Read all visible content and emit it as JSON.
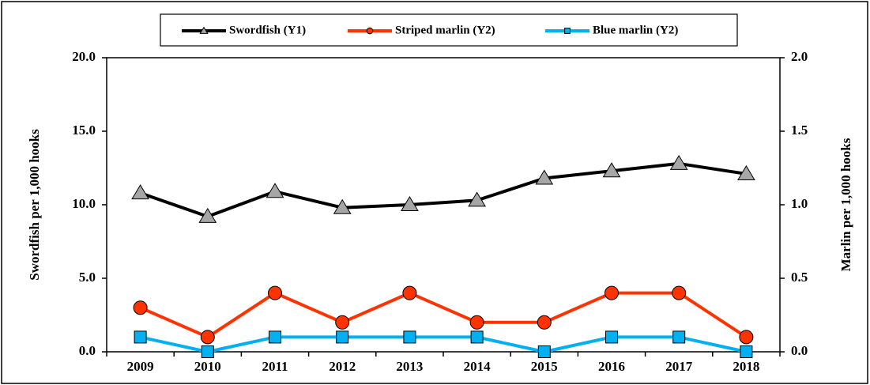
{
  "chart_data": {
    "type": "line",
    "categories": [
      "2009",
      "2010",
      "2011",
      "2012",
      "2013",
      "2014",
      "2015",
      "2016",
      "2017",
      "2018"
    ],
    "series": [
      {
        "name": "Swordfish (Y1)",
        "color": "#000000",
        "marker_color": "#a6a6a6",
        "marker": "triangle",
        "values": [
          10.8,
          9.2,
          10.9,
          9.8,
          10.0,
          10.3,
          11.8,
          12.3,
          12.8,
          12.1
        ]
      },
      {
        "name": "Striped marlin (Y2)",
        "color": "#ff3300",
        "marker_color": "#ff3300",
        "marker": "circle",
        "axis": "y2",
        "values": [
          0.3,
          0.1,
          0.4,
          0.2,
          0.4,
          0.2,
          0.2,
          0.4,
          0.4,
          0.1
        ]
      },
      {
        "name": "Blue marlin (Y2)",
        "color": "#00b0f0",
        "marker_color": "#00b0f0",
        "marker": "square",
        "axis": "y2",
        "values": [
          0.1,
          0,
          0.1,
          0.1,
          0.1,
          0.1,
          0,
          0.1,
          0.1,
          0
        ]
      }
    ],
    "ylabel": "Swordfish per 1,000 hooks",
    "y2label": "Marlin per 1,000 hooks",
    "ylim": [
      0,
      20
    ],
    "yticks": [
      {
        "value": 0,
        "label": "0.0"
      },
      {
        "value": 5,
        "label": "5.0"
      },
      {
        "value": 10,
        "label": "10.0"
      },
      {
        "value": 15,
        "label": "15.0"
      },
      {
        "value": 20,
        "label": "20.0"
      }
    ],
    "y2lim": [
      0,
      2
    ],
    "y2ticks": [
      {
        "value": 0,
        "label": "0.0"
      },
      {
        "value": 0.5,
        "label": "0.5"
      },
      {
        "value": 1,
        "label": "1.0"
      },
      {
        "value": 1.5,
        "label": "1.5"
      },
      {
        "value": 2,
        "label": "2.0"
      }
    ],
    "legend": "top",
    "grid": false
  }
}
